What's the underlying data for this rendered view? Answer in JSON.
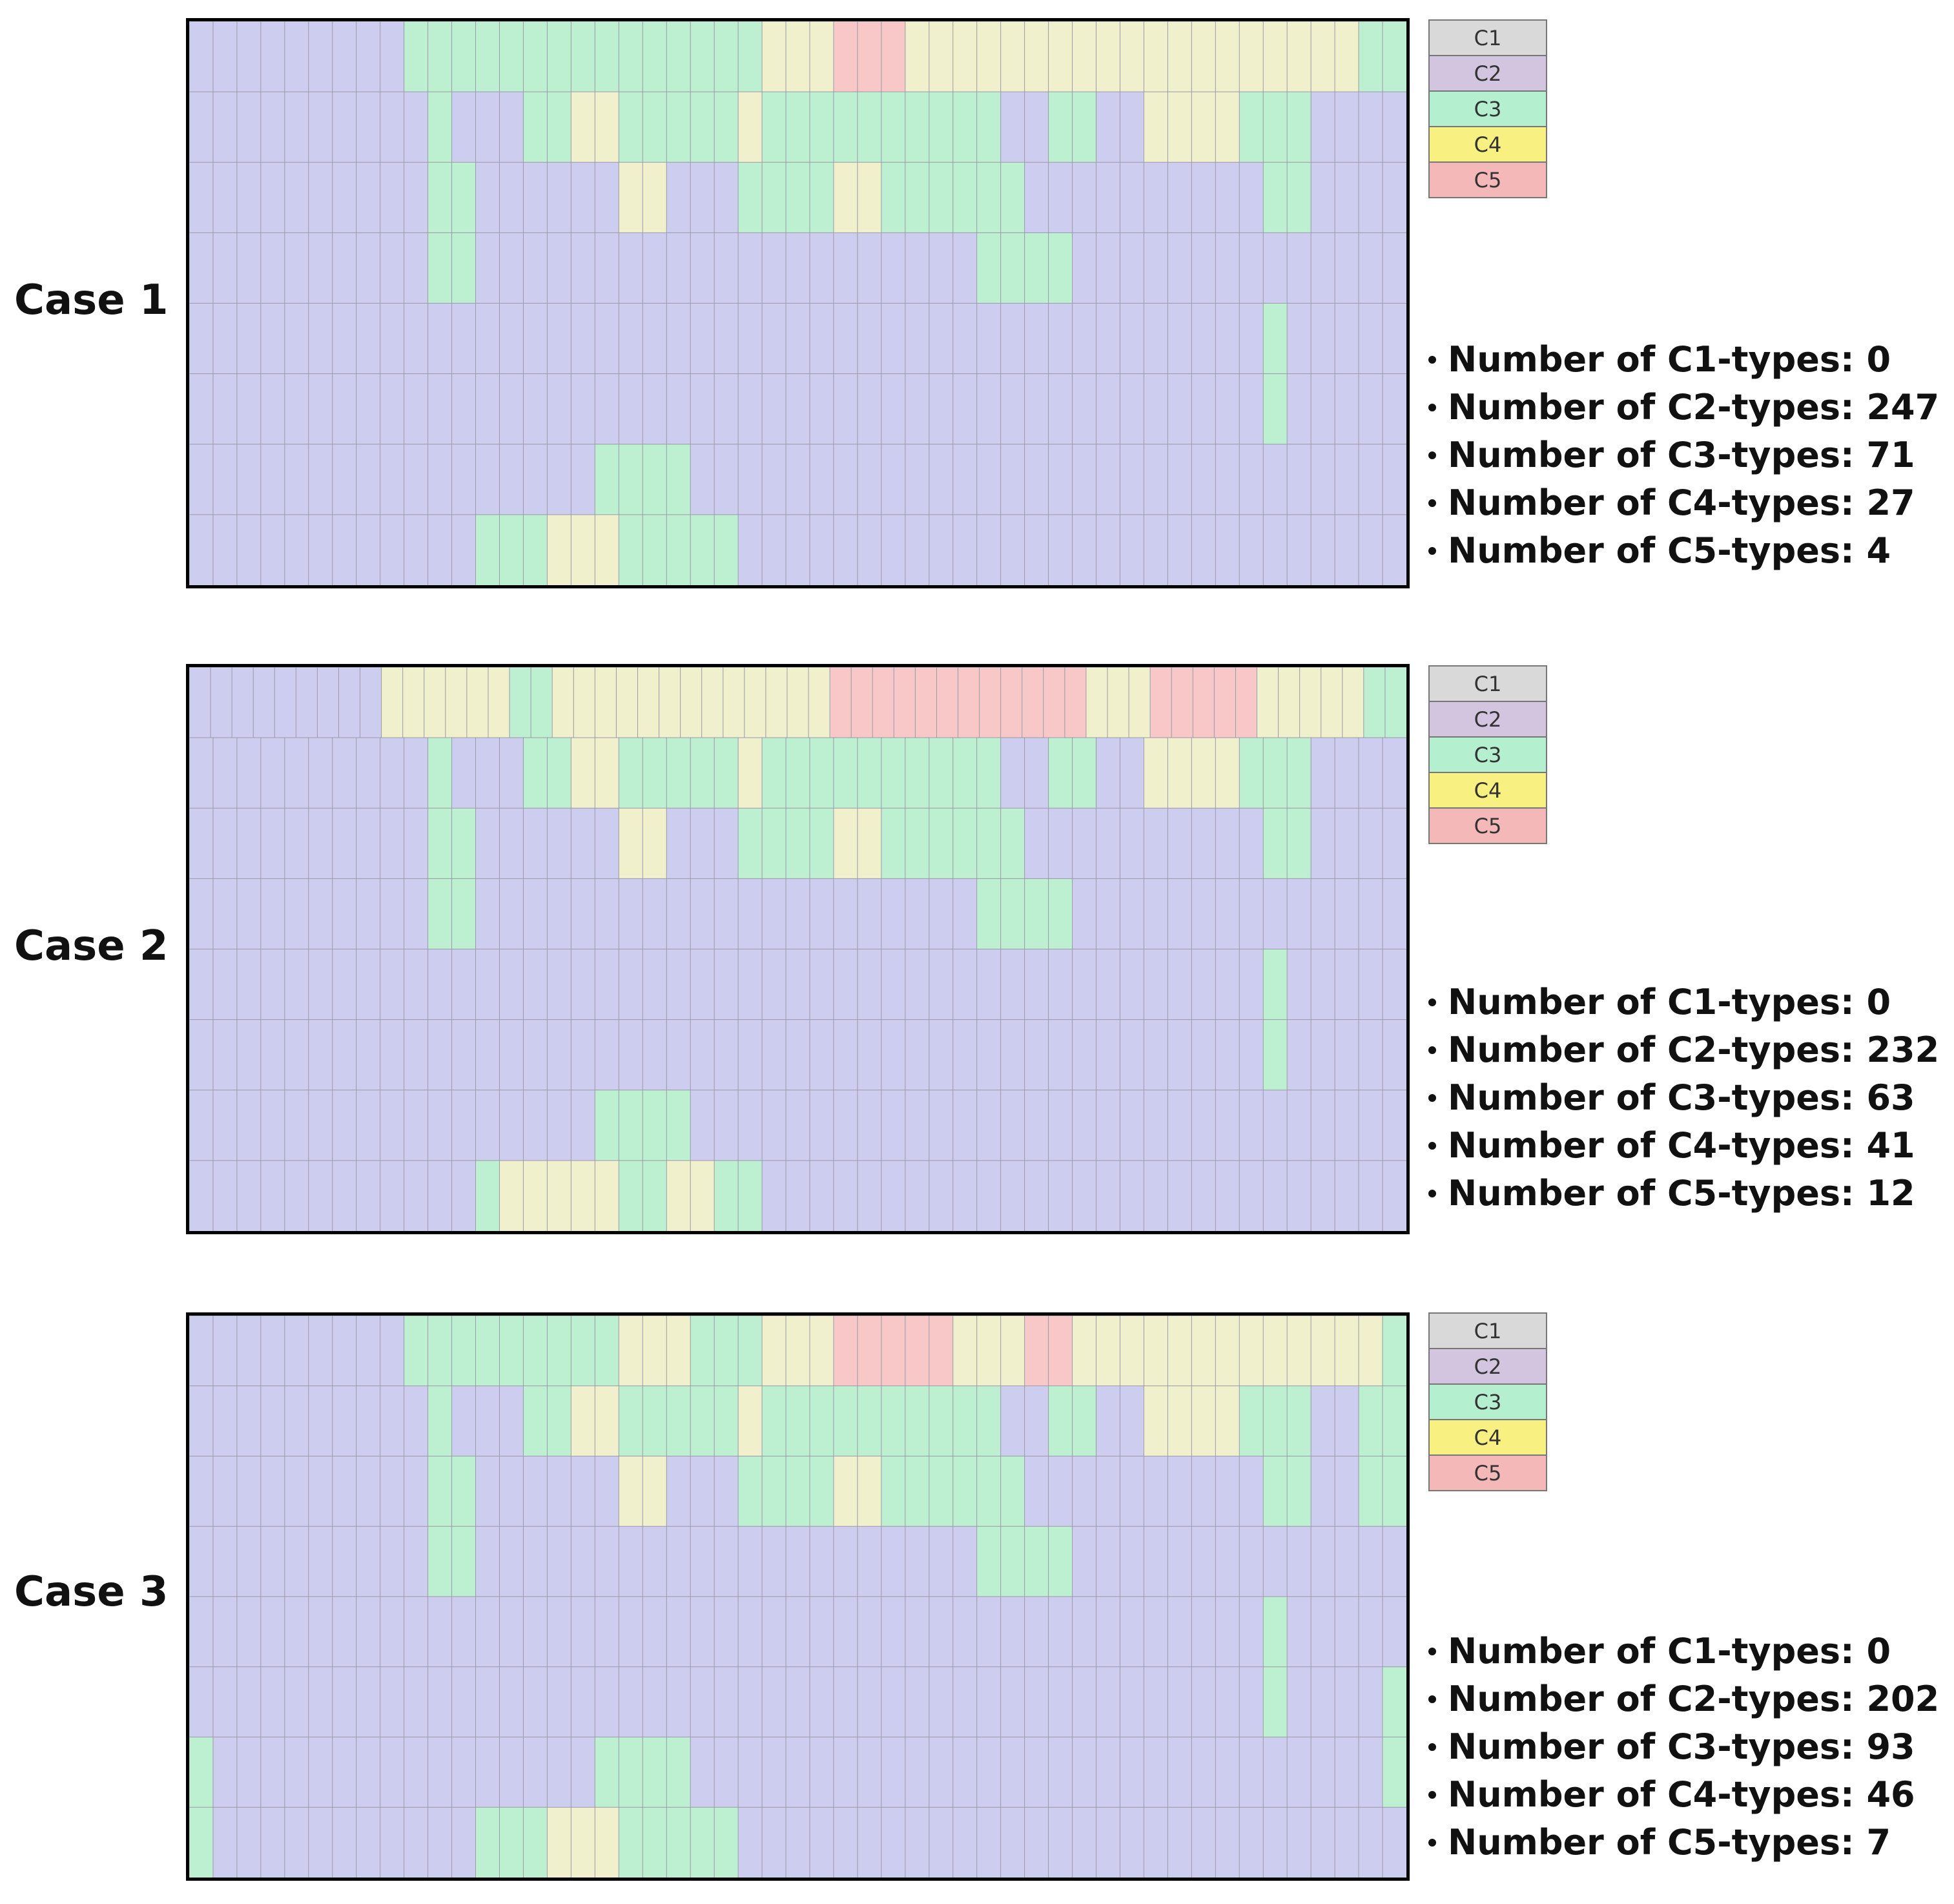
{
  "colors": {
    "C1": "#dcdcdc",
    "C2": "#cdcdf0",
    "C3": "#bdf0d0",
    "C4": "#f0f0cc",
    "C5": "#f8c8c8"
  },
  "legend_colors": {
    "C1": "#d9d9d9",
    "C2": "#d3c5e0",
    "C3": "#b4f0d0",
    "C4": "#f8f080",
    "C5": "#f4b8b8"
  },
  "chart_data": [
    {
      "type": "heatmap",
      "title": "Case 1",
      "legend": [
        "C1",
        "C2",
        "C3",
        "C4",
        "C5"
      ],
      "stats": [
        {
          "label": "Number of C1-types:",
          "value": "0"
        },
        {
          "label": "Number of C2-types:",
          "value": "247"
        },
        {
          "label": "Number of C3-types:",
          "value": "71"
        },
        {
          "label": "Number of C4-types:",
          "value": "27"
        },
        {
          "label": "Number of C5-types: ",
          "value": "4"
        }
      ],
      "rows": [
        "222222222333333333333333444555444444444444444444433",
        "222222222232223344333334333333333322332244443332222",
        "222222222233222222442223333443333332222222222332222",
        "222222222233222222222222222222222333322222222222222",
        "222222222222222222222222222222222222222222222322222",
        "222222222222222222222222222222222222222222222322222",
        "222222222222222223333222222222222222222222222222222",
        "222222222222333444333332222222222222222222222222222"
      ]
    },
    {
      "type": "heatmap",
      "title": "Case 2",
      "legend": [
        "C1",
        "C2",
        "C3",
        "C4",
        "C5"
      ],
      "stats": [
        {
          "label": "Number of C1-types:",
          "value": "0"
        },
        {
          "label": "Number of C2-types:",
          "value": "232"
        },
        {
          "label": "Number of C3-types:",
          "value": "63"
        },
        {
          "label": "Number of C4-types:",
          "value": "41"
        },
        {
          "label": "Number of C5-types:",
          "value": "12"
        }
      ],
      "rows": [
        "222222222444444334444444444444555555555555444555554444433",
        "222222222232223344333334333333333322332244443332222",
        "222222222233222222442223333443333332222222222332222",
        "222222222233222222222222222222222333322222222222222",
        "222222222222222222222222222222222222222222222322222",
        "222222222222222222222222222222222222222222222322222",
        "222222222222222223333222222222222222222222222222222",
        "222222222222344444334433222222222222222222222222222"
      ]
    },
    {
      "type": "heatmap",
      "title": "Case 3",
      "legend": [
        "C1",
        "C2",
        "C3",
        "C4",
        "C5"
      ],
      "stats": [
        {
          "label": "Number of C1-types:",
          "value": "0"
        },
        {
          "label": "Number of C2-types:",
          "value": "202"
        },
        {
          "label": "Number of C3-types:",
          "value": "93"
        },
        {
          "label": "Number of C4-types:",
          "value": "46"
        },
        {
          "label": "Number of C5-types:",
          "value": "7"
        }
      ],
      "rows": [
        "222222222333333333444333444555554445544444444444443",
        "222222222232223344333334333333333322332244443332233",
        "222222222233222222442223333443333332222222222332233",
        "222222222233222222222222222222222333322222222222222",
        "222222222222222222222222222222222222222222222322222",
        "222222222222222222222222222222222222222222222322223",
        "322222222222222223333222222222222222222222222222223",
        "322222222222333444333332222222222222222222222222222"
      ]
    }
  ]
}
